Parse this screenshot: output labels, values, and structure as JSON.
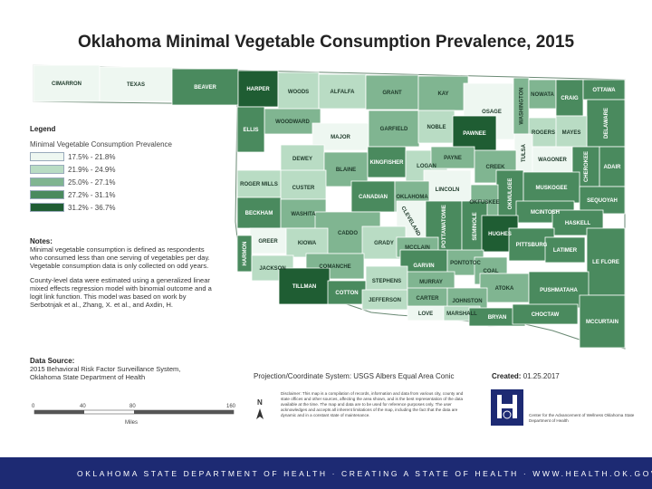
{
  "title": "Oklahoma Minimal Vegetable Consumption Prevalence, 2015",
  "legend": {
    "heading": "Legend",
    "subheading": "Minimal Vegetable Consumption Prevalence",
    "classes": [
      {
        "label": "17.5% - 21.8%",
        "color": "#eef7f1"
      },
      {
        "label": "21.9% - 24.9%",
        "color": "#b9dcc4"
      },
      {
        "label": "25.0% - 27.1%",
        "color": "#80b591"
      },
      {
        "label": "27.2% - 31.1%",
        "color": "#4a8a5e"
      },
      {
        "label": "31.2% - 36.7%",
        "color": "#1f5d33"
      }
    ]
  },
  "notes": {
    "heading": "Notes:",
    "paragraph1": "Minimal vegetable consumption is defined as respondents who consumed less than one serving of vegetables per day. Vegetable consumption data is only collected on odd years.",
    "paragraph2": "County-level data were estimated using a generalized linear mixed effects regression model with binomial outcome and a logit link function. This model was based on work by Serbotnjak et al., Zhang, X. et al., and Axdin, H."
  },
  "source": {
    "heading": "Data Source:",
    "line1": "2015 Behavioral Risk Factor Surveillance System,",
    "line2": "Oklahoma State Department of Health"
  },
  "projection": "Projection/Coordinate System: USGS Albers Equal Area Conic",
  "created_label": "Created:",
  "created_date": "01.25.2017",
  "disclaimer": "Disclaimer: This map is a compilation of records, information and data from various city, county and state offices and other sources, affecting the area shown, and is the best representation of the data available at the time. The map and data are to be used for reference purposes only. The user acknowledges and accepts all inherent limitations of the map, including the fact that the data are dynamic and in a constant state of maintenance.",
  "org_text": "Center for the Advancement of Wellness Oklahoma State Department of Health",
  "north_label": "N",
  "scale": {
    "ticks": [
      "0",
      "40",
      "80",
      "160"
    ],
    "unit": "Miles"
  },
  "footer": "OKLAHOMA STATE DEPARTMENT OF HEALTH · CREATING A STATE OF HEALTH · WWW.HEALTH.OK.GOV",
  "counties": [
    {
      "name": "CIMARRON",
      "class": 1
    },
    {
      "name": "TEXAS",
      "class": 1
    },
    {
      "name": "BEAVER",
      "class": 4
    },
    {
      "name": "HARPER",
      "class": 5
    },
    {
      "name": "WOODS",
      "class": 2
    },
    {
      "name": "ALFALFA",
      "class": 2
    },
    {
      "name": "GRANT",
      "class": 3
    },
    {
      "name": "KAY",
      "class": 3
    },
    {
      "name": "OSAGE",
      "class": 1
    },
    {
      "name": "WASHINGTON",
      "class": 3
    },
    {
      "name": "NOWATA",
      "class": 3
    },
    {
      "name": "CRAIG",
      "class": 4
    },
    {
      "name": "OTTAWA",
      "class": 4
    },
    {
      "name": "DELAWARE",
      "class": 4
    },
    {
      "name": "WOODWARD",
      "class": 3
    },
    {
      "name": "ELLIS",
      "class": 4
    },
    {
      "name": "MAJOR",
      "class": 1
    },
    {
      "name": "GARFIELD",
      "class": 3
    },
    {
      "name": "NOBLE",
      "class": 2
    },
    {
      "name": "PAWNEE",
      "class": 5
    },
    {
      "name": "ROGERS",
      "class": 2
    },
    {
      "name": "MAYES",
      "class": 2
    },
    {
      "name": "TULSA",
      "class": 1
    },
    {
      "name": "WAGONER",
      "class": 1
    },
    {
      "name": "CHEROKEE",
      "class": 4
    },
    {
      "name": "ADAIR",
      "class": 4
    },
    {
      "name": "DEWEY",
      "class": 2
    },
    {
      "name": "BLAINE",
      "class": 3
    },
    {
      "name": "KINGFISHER",
      "class": 4
    },
    {
      "name": "LOGAN",
      "class": 2
    },
    {
      "name": "PAYNE",
      "class": 3
    },
    {
      "name": "CREEK",
      "class": 3
    },
    {
      "name": "ROGER MILLS",
      "class": 2
    },
    {
      "name": "CUSTER",
      "class": 2
    },
    {
      "name": "LINCOLN",
      "class": 1
    },
    {
      "name": "OKMULGEE",
      "class": 4
    },
    {
      "name": "MUSKOGEE",
      "class": 4
    },
    {
      "name": "SEQUOYAH",
      "class": 4
    },
    {
      "name": "OKFUSKEE",
      "class": 3
    },
    {
      "name": "CANADIAN",
      "class": 4
    },
    {
      "name": "OKLAHOMA",
      "class": 3
    },
    {
      "name": "MCINTOSH",
      "class": 4
    },
    {
      "name": "BECKHAM",
      "class": 4
    },
    {
      "name": "WASHITA",
      "class": 3
    },
    {
      "name": "CADDO",
      "class": 3
    },
    {
      "name": "CLEVELAND",
      "class": 1
    },
    {
      "name": "POTTAWATOMIE",
      "class": 4
    },
    {
      "name": "SEMINOLE",
      "class": 4
    },
    {
      "name": "HASKELL",
      "class": 4
    },
    {
      "name": "GREER",
      "class": 1
    },
    {
      "name": "KIOWA",
      "class": 2
    },
    {
      "name": "HARMON",
      "class": 4
    },
    {
      "name": "GRADY",
      "class": 2
    },
    {
      "name": "MCCLAIN",
      "class": 3
    },
    {
      "name": "HUGHES",
      "class": 5
    },
    {
      "name": "PITTSBURG",
      "class": 4
    },
    {
      "name": "LATIMER",
      "class": 4
    },
    {
      "name": "LE FLORE",
      "class": 4
    },
    {
      "name": "JACKSON",
      "class": 2
    },
    {
      "name": "COMANCHE",
      "class": 3
    },
    {
      "name": "GARVIN",
      "class": 4
    },
    {
      "name": "PONTOTOC",
      "class": 3
    },
    {
      "name": "COAL",
      "class": 3
    },
    {
      "name": "TILLMAN",
      "class": 5
    },
    {
      "name": "COTTON",
      "class": 4
    },
    {
      "name": "STEPHENS",
      "class": 2
    },
    {
      "name": "MURRAY",
      "class": 3
    },
    {
      "name": "ATOKA",
      "class": 3
    },
    {
      "name": "PUSHMATAHA",
      "class": 4
    },
    {
      "name": "JEFFERSON",
      "class": 2
    },
    {
      "name": "CARTER",
      "class": 3
    },
    {
      "name": "JOHNSTON",
      "class": 3
    },
    {
      "name": "MCCURTAIN",
      "class": 4
    },
    {
      "name": "LOVE",
      "class": 1
    },
    {
      "name": "MARSHALL",
      "class": 2
    },
    {
      "name": "BRYAN",
      "class": 4
    },
    {
      "name": "CHOCTAW",
      "class": 4
    }
  ]
}
